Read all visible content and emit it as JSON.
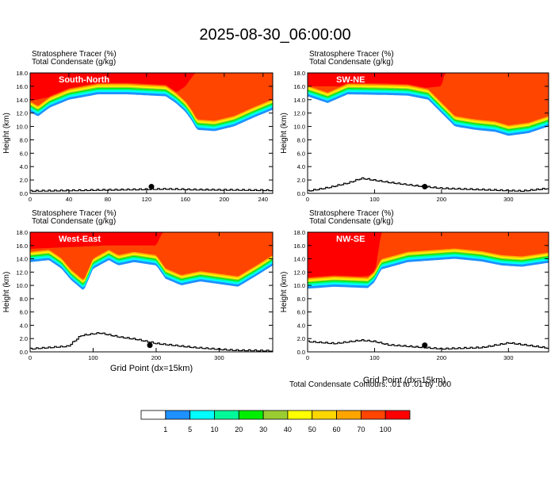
{
  "title": "2025-08-30_06:00:00",
  "field_labels": {
    "line1": "Stratosphere Tracer   (%)",
    "line2": "Total Condensate   (g/kg)"
  },
  "ylabel": "Height (km)",
  "xlabel": "Grid Point (dx=15km)",
  "contour_note": "Total Condensate Contours: .01 to .01 by .000",
  "colorbar": {
    "levels": [
      "1",
      "5",
      "10",
      "20",
      "30",
      "40",
      "50",
      "60",
      "70",
      "100"
    ],
    "colors": [
      "#ffffff",
      "#1e90ff",
      "#00ffff",
      "#00fa9a",
      "#00ee00",
      "#9acd32",
      "#ffff00",
      "#ffd700",
      "#ffa500",
      "#ff4500",
      "#ff0000"
    ]
  },
  "chart_data": [
    {
      "type": "heatmap",
      "name": "South-North",
      "xlim": [
        0,
        250
      ],
      "xticks": [
        "0",
        "40",
        "80",
        "120",
        "160",
        "200",
        "240"
      ],
      "ylim": [
        0,
        18
      ],
      "yticks": [
        "0.0",
        "2.0",
        "4.0",
        "6.0",
        "8.0",
        "10.0",
        "12.0",
        "14.0",
        "16.0",
        "18.0"
      ],
      "tracer_base_km": [
        [
          0,
          12.2
        ],
        [
          8,
          11.5
        ],
        [
          20,
          12.8
        ],
        [
          40,
          14.0
        ],
        [
          70,
          14.8
        ],
        [
          100,
          14.8
        ],
        [
          140,
          14.5
        ],
        [
          150,
          13.5
        ],
        [
          160,
          12.2
        ],
        [
          166,
          11.0
        ],
        [
          172,
          9.5
        ],
        [
          190,
          9.3
        ],
        [
          210,
          10.0
        ],
        [
          230,
          11.3
        ],
        [
          250,
          12.5
        ]
      ],
      "stratosphere_top_km": [
        [
          0,
          13.8
        ],
        [
          40,
          15.0
        ],
        [
          100,
          15.2
        ],
        [
          150,
          15.0
        ],
        [
          160,
          16.0
        ],
        [
          170,
          18.0
        ],
        [
          250,
          18.0
        ]
      ],
      "terrain_km": [
        [
          0,
          0.3
        ],
        [
          50,
          0.4
        ],
        [
          100,
          0.5
        ],
        [
          140,
          0.6
        ],
        [
          170,
          0.5
        ],
        [
          250,
          0.4
        ]
      ],
      "marker": {
        "x": 125,
        "y_km": 1.0
      }
    },
    {
      "type": "heatmap",
      "name": "SW-NE",
      "xlim": [
        0,
        360
      ],
      "xticks": [
        "0",
        "100",
        "200",
        "300"
      ],
      "ylim": [
        0,
        18
      ],
      "yticks": [
        "0.0",
        "2.0",
        "4.0",
        "6.0",
        "8.0",
        "10.0",
        "12.0",
        "14.0",
        "16.0",
        "18.0"
      ],
      "tracer_base_km": [
        [
          0,
          14.5
        ],
        [
          30,
          13.5
        ],
        [
          60,
          14.8
        ],
        [
          120,
          14.7
        ],
        [
          150,
          14.6
        ],
        [
          180,
          14.0
        ],
        [
          200,
          12.0
        ],
        [
          220,
          10.0
        ],
        [
          250,
          9.5
        ],
        [
          280,
          9.2
        ],
        [
          300,
          8.6
        ],
        [
          330,
          9.0
        ],
        [
          360,
          10.0
        ]
      ],
      "stratosphere_top_km": [
        [
          0,
          16.0
        ],
        [
          80,
          16.0
        ],
        [
          150,
          15.5
        ],
        [
          200,
          16.0
        ],
        [
          205,
          18.0
        ],
        [
          360,
          18.0
        ]
      ],
      "terrain_km": [
        [
          0,
          0.3
        ],
        [
          30,
          0.8
        ],
        [
          60,
          1.5
        ],
        [
          80,
          2.2
        ],
        [
          120,
          1.6
        ],
        [
          160,
          1.1
        ],
        [
          200,
          0.7
        ],
        [
          260,
          0.5
        ],
        [
          320,
          0.3
        ],
        [
          360,
          0.7
        ]
      ],
      "marker": {
        "x": 175,
        "y_km": 1.0
      }
    },
    {
      "type": "heatmap",
      "name": "West-East",
      "xlim": [
        0,
        385
      ],
      "xticks": [
        "0",
        "100",
        "200",
        "300"
      ],
      "ylim": [
        0,
        18
      ],
      "yticks": [
        "0.0",
        "2.0",
        "4.0",
        "6.0",
        "8.0",
        "10.0",
        "12.0",
        "14.0",
        "16.0",
        "18.0"
      ],
      "tracer_base_km": [
        [
          0,
          13.5
        ],
        [
          30,
          13.8
        ],
        [
          50,
          12.5
        ],
        [
          65,
          10.8
        ],
        [
          85,
          9.2
        ],
        [
          100,
          12.5
        ],
        [
          125,
          13.8
        ],
        [
          140,
          13.0
        ],
        [
          165,
          13.5
        ],
        [
          200,
          13.0
        ],
        [
          215,
          11.0
        ],
        [
          240,
          10.0
        ],
        [
          270,
          10.6
        ],
        [
          300,
          10.2
        ],
        [
          330,
          9.8
        ],
        [
          360,
          11.5
        ],
        [
          385,
          13.0
        ]
      ],
      "stratosphere_top_km": [
        [
          0,
          15.5
        ],
        [
          120,
          16.0
        ],
        [
          200,
          16.0
        ],
        [
          210,
          18.0
        ],
        [
          385,
          18.0
        ]
      ],
      "terrain_km": [
        [
          0,
          0.4
        ],
        [
          60,
          0.8
        ],
        [
          70,
          1.6
        ],
        [
          80,
          2.4
        ],
        [
          110,
          2.8
        ],
        [
          140,
          2.2
        ],
        [
          170,
          1.8
        ],
        [
          200,
          1.2
        ],
        [
          260,
          0.6
        ],
        [
          320,
          0.2
        ],
        [
          385,
          0.1
        ]
      ],
      "marker": {
        "x": 190,
        "y_km": 1.0
      }
    },
    {
      "type": "heatmap",
      "name": "NW-SE",
      "xlim": [
        0,
        360
      ],
      "xticks": [
        "0",
        "100",
        "200",
        "300"
      ],
      "ylim": [
        0,
        18
      ],
      "yticks": [
        "0.0",
        "2.0",
        "4.0",
        "6.0",
        "8.0",
        "10.0",
        "12.0",
        "14.0",
        "16.0",
        "18.0"
      ],
      "tracer_base_km": [
        [
          0,
          9.5
        ],
        [
          40,
          9.8
        ],
        [
          90,
          9.6
        ],
        [
          100,
          10.5
        ],
        [
          110,
          12.4
        ],
        [
          150,
          13.5
        ],
        [
          220,
          14.0
        ],
        [
          260,
          13.6
        ],
        [
          290,
          13.0
        ],
        [
          320,
          12.8
        ],
        [
          360,
          13.4
        ]
      ],
      "stratosphere_top_km": [
        [
          0,
          10.8
        ],
        [
          100,
          11.5
        ],
        [
          110,
          18.0
        ],
        [
          360,
          18.0
        ]
      ],
      "terrain_km": [
        [
          0,
          1.5
        ],
        [
          40,
          1.2
        ],
        [
          80,
          1.7
        ],
        [
          100,
          1.5
        ],
        [
          120,
          1.0
        ],
        [
          160,
          0.7
        ],
        [
          200,
          0.4
        ],
        [
          260,
          0.6
        ],
        [
          300,
          1.3
        ],
        [
          360,
          0.5
        ]
      ],
      "marker": {
        "x": 175,
        "y_km": 1.0
      }
    }
  ]
}
